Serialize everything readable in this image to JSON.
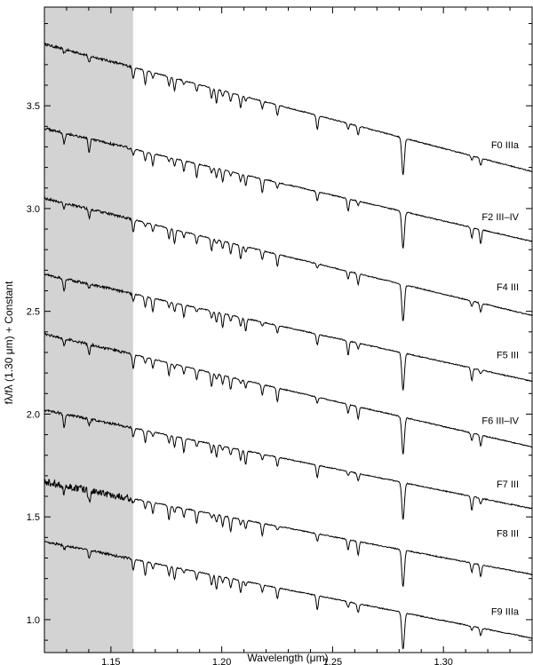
{
  "chart_data": {
    "type": "line",
    "title": "",
    "xlabel": "Wavelength (μm)",
    "ylabel": "fλ/fλ (1.30 μm) + Constant",
    "xlim": [
      1.12,
      1.34
    ],
    "ylim": [
      0.84,
      3.98
    ],
    "x_ticks": [
      1.15,
      1.2,
      1.25,
      1.3
    ],
    "x_tick_labels": [
      "1.15",
      "1.20",
      "1.25",
      "1.30"
    ],
    "y_ticks": [
      1.0,
      1.5,
      2.0,
      2.5,
      3.0,
      3.5
    ],
    "y_tick_labels": [
      "1.0",
      "1.5",
      "2.0",
      "2.5",
      "3.0",
      "3.5"
    ],
    "grid": false,
    "shaded_region": {
      "x_start": 1.12,
      "x_end": 1.16,
      "color": "#d3d3d3"
    },
    "line_color": "#000000",
    "series": [
      {
        "name": "F0 IIIa",
        "x_range": [
          1.12,
          1.34
        ],
        "y_start": 3.8,
        "y_end": 3.18,
        "label_y": 3.31
      },
      {
        "name": "F2 III–IV",
        "x_range": [
          1.12,
          1.34
        ],
        "y_start": 3.39,
        "y_end": 2.84,
        "label_y": 2.96
      },
      {
        "name": "F4 III",
        "x_range": [
          1.12,
          1.34
        ],
        "y_start": 3.05,
        "y_end": 2.48,
        "label_y": 2.62
      },
      {
        "name": "F5 III",
        "x_range": [
          1.12,
          1.34
        ],
        "y_start": 2.68,
        "y_end": 2.16,
        "label_y": 2.29
      },
      {
        "name": "F6 III–IV",
        "x_range": [
          1.12,
          1.34
        ],
        "y_start": 2.39,
        "y_end": 1.84,
        "label_y": 1.97
      },
      {
        "name": "F7 III",
        "x_range": [
          1.12,
          1.34
        ],
        "y_start": 2.02,
        "y_end": 1.54,
        "label_y": 1.66
      },
      {
        "name": "F8 III",
        "x_range": [
          1.12,
          1.34
        ],
        "y_start": 1.67,
        "y_end": 1.22,
        "label_y": 1.42
      },
      {
        "name": "F9 IIIa",
        "x_range": [
          1.12,
          1.34
        ],
        "y_start": 1.38,
        "y_end": 0.91,
        "label_y": 1.04
      }
    ],
    "absorption_features_um": [
      1.1289,
      1.1402,
      1.1601,
      1.1655,
      1.1689,
      1.1762,
      1.1787,
      1.1829,
      1.1887,
      1.1954,
      1.1976,
      1.2004,
      1.204,
      1.2085,
      1.2108,
      1.2183,
      1.2251,
      1.2431,
      1.257,
      1.2615,
      1.2818,
      1.3128,
      1.3168
    ]
  }
}
